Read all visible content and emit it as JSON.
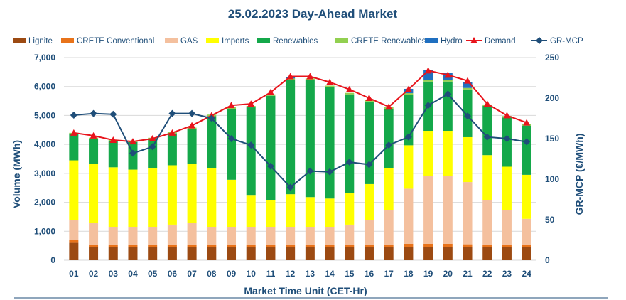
{
  "chart_data": {
    "type": "bar",
    "title": "25.02.2023  Day-Ahead Market",
    "xlabel": "Market Time Unit (CET-Hr)",
    "ylabel": "Volume (MWh)",
    "y2label": "GR-MCP (€/MWh)",
    "ylim": [
      0,
      7000
    ],
    "y2lim": [
      0,
      250
    ],
    "yticks": [
      "0",
      "1,000",
      "2,000",
      "3,000",
      "4,000",
      "5,000",
      "6,000",
      "7,000"
    ],
    "y2ticks": [
      "0",
      "50",
      "100",
      "150",
      "200",
      "250"
    ],
    "categories": [
      "01",
      "02",
      "03",
      "04",
      "05",
      "06",
      "07",
      "08",
      "09",
      "10",
      "11",
      "12",
      "13",
      "14",
      "15",
      "16",
      "17",
      "18",
      "19",
      "20",
      "21",
      "22",
      "23",
      "24"
    ],
    "stacked_series": [
      {
        "name": "Lignite",
        "color": "#9c4a12",
        "values": [
          600,
          450,
          450,
          450,
          450,
          450,
          450,
          450,
          450,
          450,
          450,
          450,
          450,
          450,
          450,
          450,
          450,
          450,
          450,
          450,
          450,
          450,
          450,
          450
        ]
      },
      {
        "name": "CRETE Conventional",
        "color": "#e8731a",
        "values": [
          100,
          80,
          80,
          80,
          80,
          80,
          80,
          80,
          80,
          80,
          80,
          80,
          80,
          80,
          80,
          80,
          80,
          120,
          120,
          120,
          100,
          80,
          80,
          80
        ]
      },
      {
        "name": "GAS",
        "color": "#f4c09e",
        "values": [
          700,
          750,
          600,
          600,
          600,
          700,
          750,
          600,
          600,
          600,
          600,
          600,
          600,
          600,
          700,
          850,
          1200,
          1900,
          2350,
          2350,
          2150,
          1550,
          1200,
          900
        ]
      },
      {
        "name": "Imports",
        "color": "#ffff00",
        "values": [
          2050,
          2050,
          2080,
          2000,
          2050,
          2050,
          2050,
          2050,
          1650,
          1100,
          950,
          1150,
          1050,
          1000,
          1100,
          1250,
          1450,
          1500,
          1550,
          1550,
          1550,
          1550,
          1500,
          1520
        ]
      },
      {
        "name": "Renewables",
        "color": "#14a84a",
        "values": [
          900,
          850,
          900,
          950,
          1000,
          1100,
          1200,
          1800,
          2450,
          3050,
          3600,
          3950,
          4050,
          3850,
          3400,
          2850,
          2050,
          1750,
          1700,
          1700,
          1650,
          1700,
          1700,
          1700
        ]
      },
      {
        "name": "CRETE Renewables",
        "color": "#92d050",
        "values": [
          50,
          50,
          50,
          50,
          50,
          50,
          50,
          50,
          50,
          50,
          50,
          50,
          50,
          50,
          50,
          50,
          50,
          50,
          50,
          50,
          50,
          50,
          50,
          50
        ]
      },
      {
        "name": "Hydro",
        "color": "#1f6fc0",
        "values": [
          0,
          0,
          0,
          0,
          0,
          0,
          0,
          0,
          0,
          0,
          0,
          50,
          0,
          0,
          0,
          0,
          0,
          150,
          350,
          250,
          200,
          0,
          0,
          0
        ]
      }
    ],
    "line_series": [
      {
        "name": "Demand",
        "color": "#e8141c",
        "marker": "triangle",
        "axis": "left",
        "values": [
          4400,
          4300,
          4150,
          4100,
          4200,
          4400,
          4650,
          5000,
          5350,
          5400,
          5800,
          6350,
          6350,
          6150,
          5900,
          5600,
          5300,
          5900,
          6550,
          6400,
          6200,
          5400,
          5000,
          4750
        ]
      },
      {
        "name": "GR-MCP",
        "color": "#1f4e79",
        "marker": "diamond",
        "axis": "right",
        "values": [
          179,
          181,
          180,
          132,
          140,
          181,
          181,
          175,
          150,
          142,
          116,
          90,
          110,
          109,
          121,
          118,
          142,
          152,
          191,
          205,
          178,
          152,
          150,
          146
        ]
      }
    ],
    "legend_position": "top",
    "grid": true
  }
}
